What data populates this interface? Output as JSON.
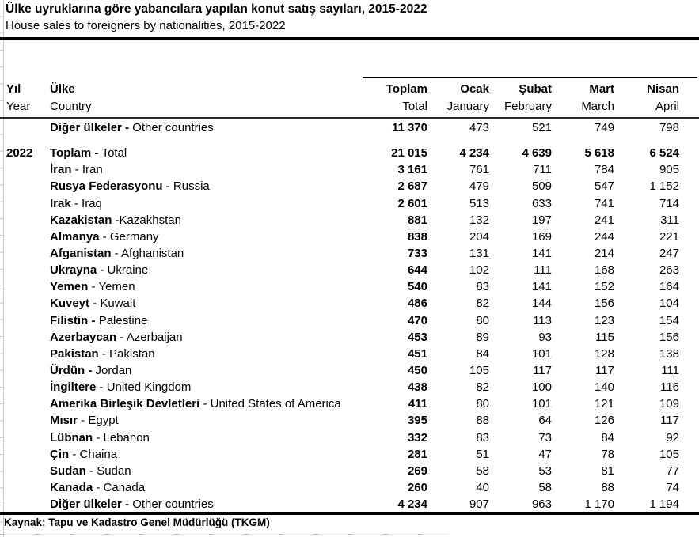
{
  "header": {
    "title_tr": "Ülke uyruklarına göre yabancılara yapılan konut satış sayıları, 2015-2022",
    "title_en": "House sales to foreigners by nationalities, 2015-2022"
  },
  "table": {
    "col_year": {
      "tr": "Yıl",
      "en": "Year"
    },
    "col_country": {
      "tr": "Ülke",
      "en": "Country"
    },
    "month_cols": [
      {
        "tr": "Toplam",
        "en": "Total"
      },
      {
        "tr": "Ocak",
        "en": "January"
      },
      {
        "tr": "Şubat",
        "en": "February"
      },
      {
        "tr": "Mart",
        "en": "March"
      },
      {
        "tr": "Nisan",
        "en": "April"
      }
    ],
    "rows": [
      {
        "year": "",
        "tr": "Diğer ülkeler",
        "sep": " - ",
        "sep_bold": true,
        "en": "Other countries",
        "values": [
          "11 370",
          "473",
          "521",
          "749",
          "798"
        ],
        "all_bold": false,
        "gap_after": true
      },
      {
        "year": "2022",
        "tr": "Toplam",
        "sep": " - ",
        "sep_bold": true,
        "en": "Total",
        "values": [
          "21 015",
          "4 234",
          "4 639",
          "5 618",
          "6 524"
        ],
        "all_bold": true,
        "gap_after": false
      },
      {
        "year": "",
        "tr": "İran",
        "sep": " - ",
        "sep_bold": false,
        "en": "Iran",
        "values": [
          "3 161",
          "761",
          "711",
          "784",
          "905"
        ],
        "all_bold": false,
        "gap_after": false
      },
      {
        "year": "",
        "tr": "Rusya Federasyonu",
        "sep": " - ",
        "sep_bold": false,
        "en": "Russia",
        "values": [
          "2 687",
          "479",
          "509",
          "547",
          "1 152"
        ],
        "all_bold": false,
        "gap_after": false
      },
      {
        "year": "",
        "tr": "Irak",
        "sep": " - ",
        "sep_bold": false,
        "en": "Iraq",
        "values": [
          "2 601",
          "513",
          "633",
          "741",
          "714"
        ],
        "all_bold": false,
        "gap_after": false
      },
      {
        "year": "",
        "tr": "Kazakistan",
        "sep": " -",
        "sep_bold": false,
        "en": "Kazakhstan",
        "values": [
          "881",
          "132",
          "197",
          "241",
          "311"
        ],
        "all_bold": false,
        "gap_after": false
      },
      {
        "year": "",
        "tr": "Almanya",
        "sep": " - ",
        "sep_bold": false,
        "en": "Germany",
        "values": [
          "838",
          "204",
          "169",
          "244",
          "221"
        ],
        "all_bold": false,
        "gap_after": false
      },
      {
        "year": "",
        "tr": "Afganistan",
        "sep": " - ",
        "sep_bold": false,
        "en": "Afghanistan",
        "values": [
          "733",
          "131",
          "141",
          "214",
          "247"
        ],
        "all_bold": false,
        "gap_after": false
      },
      {
        "year": "",
        "tr": "Ukrayna",
        "sep": " - ",
        "sep_bold": false,
        "en": "Ukraine",
        "values": [
          "644",
          "102",
          "111",
          "168",
          "263"
        ],
        "all_bold": false,
        "gap_after": false
      },
      {
        "year": "",
        "tr": "Yemen",
        "sep": " - ",
        "sep_bold": false,
        "en": "Yemen",
        "values": [
          "540",
          "83",
          "141",
          "152",
          "164"
        ],
        "all_bold": false,
        "gap_after": false
      },
      {
        "year": "",
        "tr": "Kuveyt",
        "sep": " - ",
        "sep_bold": false,
        "en": "Kuwait",
        "values": [
          "486",
          "82",
          "144",
          "156",
          "104"
        ],
        "all_bold": false,
        "gap_after": false
      },
      {
        "year": "",
        "tr": "Filistin",
        "sep": " - ",
        "sep_bold": true,
        "en": "Palestine",
        "values": [
          "470",
          "80",
          "113",
          "123",
          "154"
        ],
        "all_bold": false,
        "gap_after": false
      },
      {
        "year": "",
        "tr": "Azerbaycan",
        "sep": " - ",
        "sep_bold": false,
        "en": "Azerbaijan",
        "values": [
          "453",
          "89",
          "93",
          "115",
          "156"
        ],
        "all_bold": false,
        "gap_after": false
      },
      {
        "year": "",
        "tr": "Pakistan",
        "sep": " - ",
        "sep_bold": false,
        "en": "Pakistan",
        "values": [
          "451",
          "84",
          "101",
          "128",
          "138"
        ],
        "all_bold": false,
        "gap_after": false
      },
      {
        "year": "",
        "tr": "Ürdün",
        "sep": " - ",
        "sep_bold": true,
        "en": "Jordan",
        "values": [
          "450",
          "105",
          "117",
          "117",
          "111"
        ],
        "all_bold": false,
        "gap_after": false
      },
      {
        "year": "",
        "tr": "İngiltere",
        "sep": " - ",
        "sep_bold": false,
        "en": "United Kingdom",
        "values": [
          "438",
          "82",
          "100",
          "140",
          "116"
        ],
        "all_bold": false,
        "gap_after": false
      },
      {
        "year": "",
        "tr": "Amerika Birleşik Devletleri",
        "sep": " - ",
        "sep_bold": false,
        "en": "United States of America",
        "values": [
          "411",
          "80",
          "101",
          "121",
          "109"
        ],
        "all_bold": false,
        "gap_after": false
      },
      {
        "year": "",
        "tr": "Mısır",
        "sep": " - ",
        "sep_bold": false,
        "en": "Egypt",
        "values": [
          "395",
          "88",
          "64",
          "126",
          "117"
        ],
        "all_bold": false,
        "gap_after": false
      },
      {
        "year": "",
        "tr": "Lübnan",
        "sep": " - ",
        "sep_bold": false,
        "en": "Lebanon",
        "values": [
          "332",
          "83",
          "73",
          "84",
          "92"
        ],
        "all_bold": false,
        "gap_after": false
      },
      {
        "year": "",
        "tr": "Çin",
        "sep": " - ",
        "sep_bold": false,
        "en": "Chaina",
        "values": [
          "281",
          "51",
          "47",
          "78",
          "105"
        ],
        "all_bold": false,
        "gap_after": false
      },
      {
        "year": "",
        "tr": "Sudan",
        "sep": " - ",
        "sep_bold": false,
        "en": "Sudan",
        "values": [
          "269",
          "58",
          "53",
          "81",
          "77"
        ],
        "all_bold": false,
        "gap_after": false
      },
      {
        "year": "",
        "tr": "Kanada",
        "sep": " - ",
        "sep_bold": false,
        "en": "Canada",
        "values": [
          "260",
          "40",
          "58",
          "88",
          "74"
        ],
        "all_bold": false,
        "gap_after": false
      },
      {
        "year": "",
        "tr": "Diğer ülkeler",
        "sep": " - ",
        "sep_bold": true,
        "en": "Other countries",
        "values": [
          "4 234",
          "907",
          "963",
          "1 170",
          "1 194"
        ],
        "all_bold": false,
        "gap_after": false
      }
    ]
  },
  "footer": {
    "source": "Kaynak: Tapu ve Kadastro Genel Müdürlüğü (TKGM)"
  }
}
